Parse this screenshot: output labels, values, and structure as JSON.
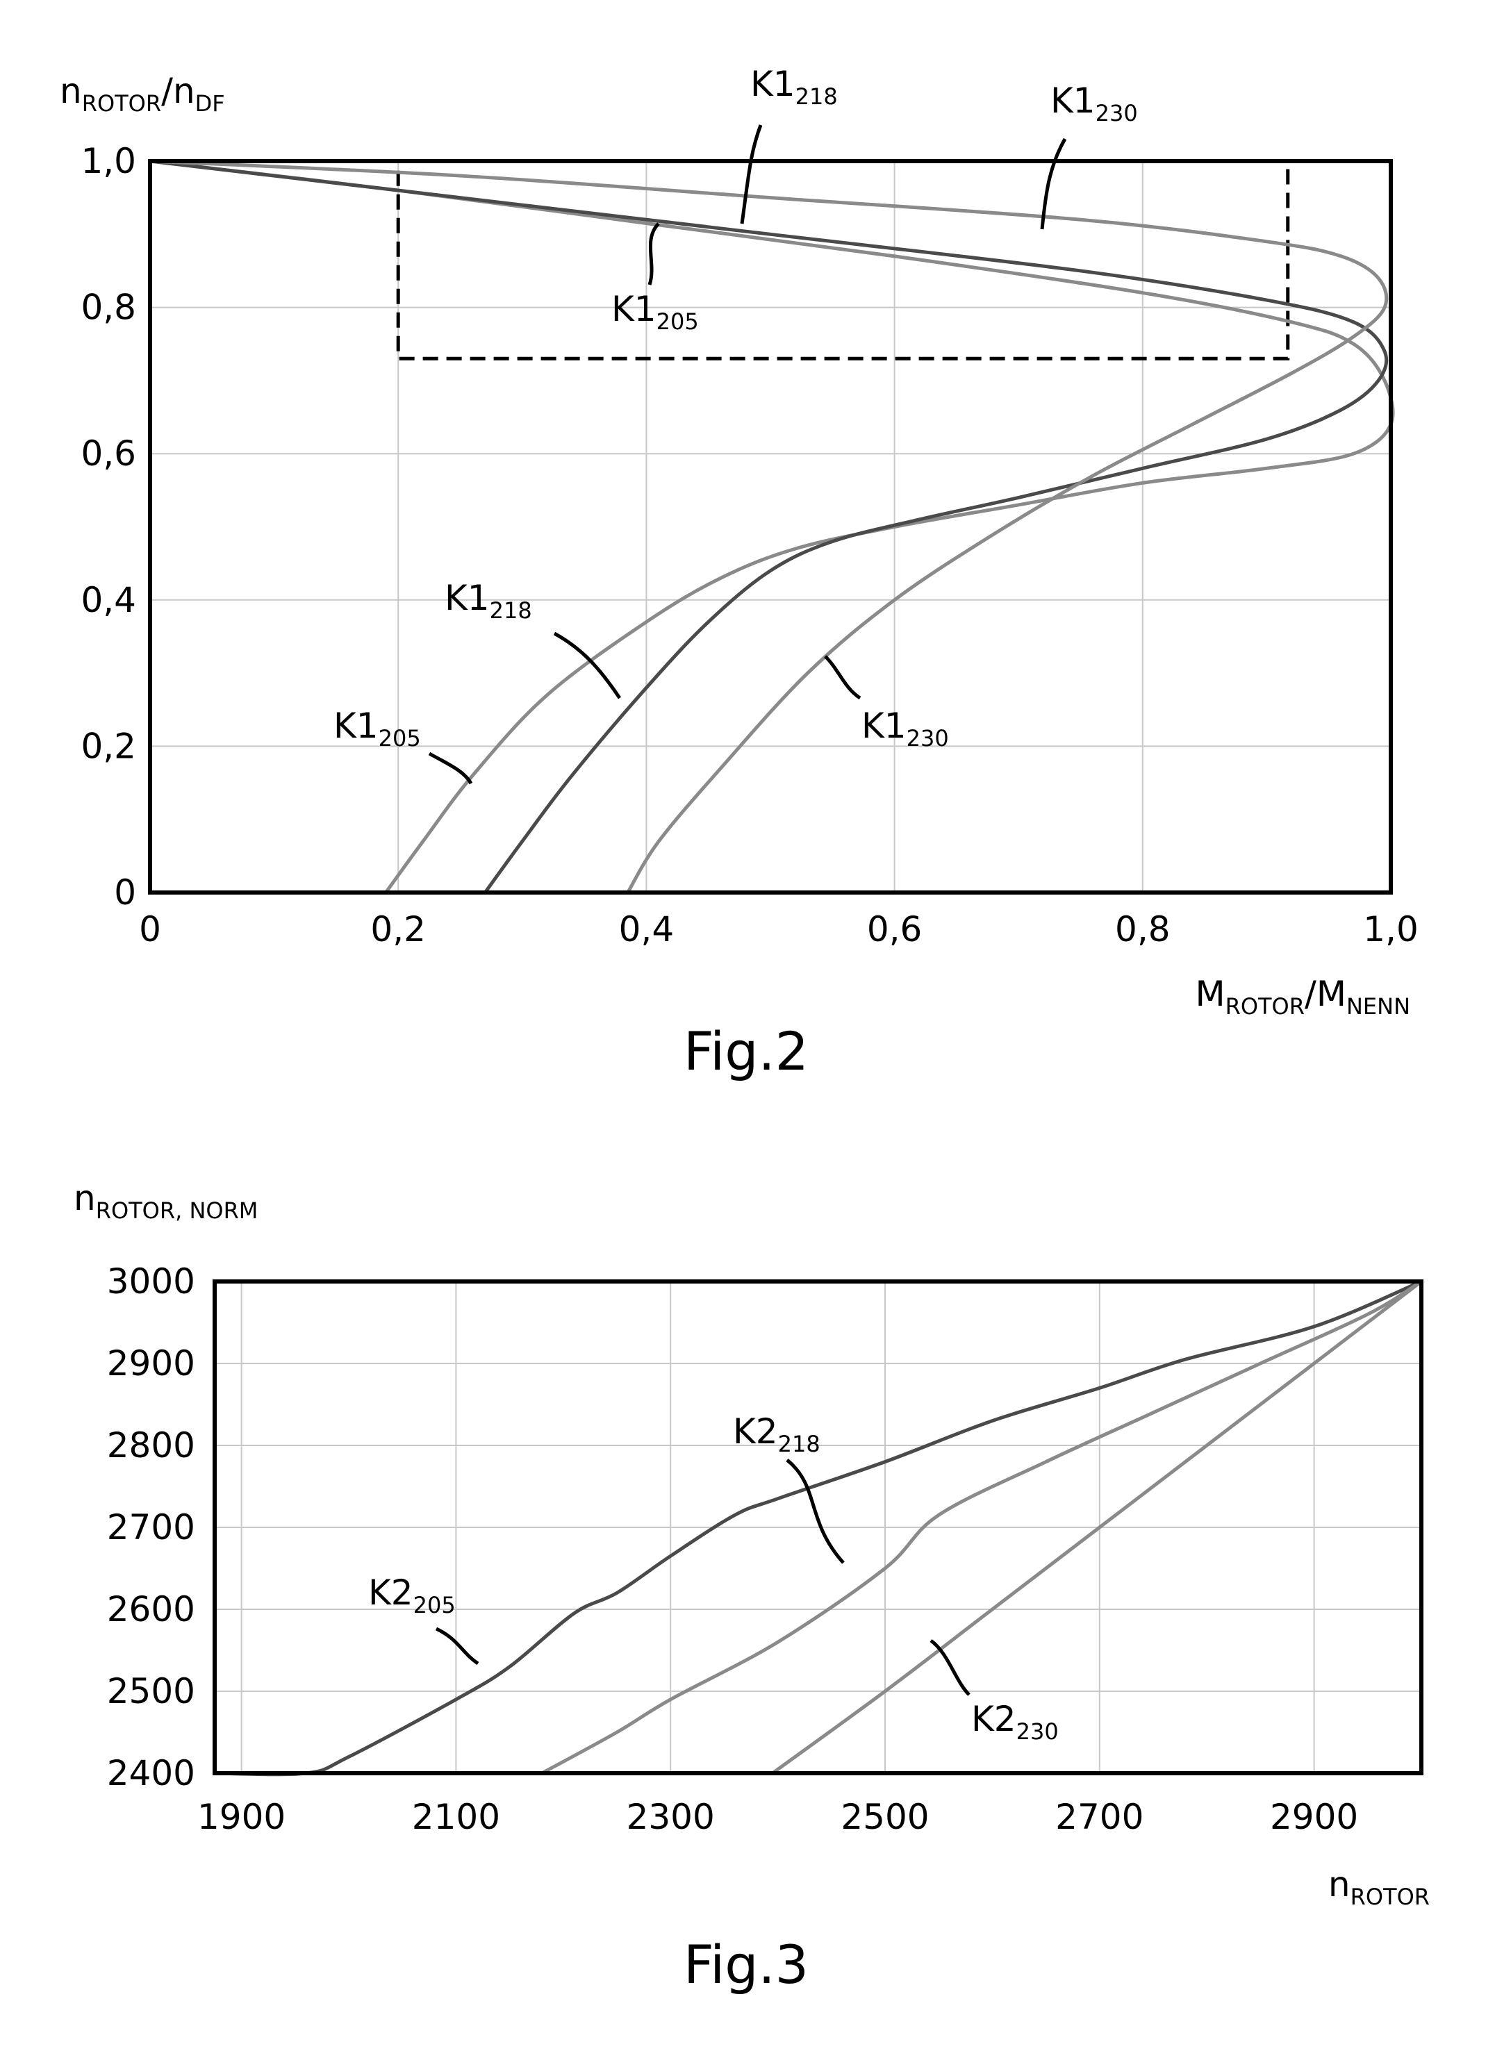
{
  "chart_data": [
    {
      "type": "line",
      "figure": "Fig.2",
      "xlabel": "M",
      "xlabel_sub": "ROTOR",
      "xlabel_slash": "/M",
      "xlabel_sub2": "NENN",
      "ylabel": "n",
      "ylabel_sub": "ROTOR",
      "ylabel_slash": "/n",
      "ylabel_sub2": "DF",
      "xlim": [
        0,
        1.0
      ],
      "ylim": [
        0,
        1.0
      ],
      "xticks": [
        {
          "v": 0,
          "label": "0"
        },
        {
          "v": 0.2,
          "label": "0,2"
        },
        {
          "v": 0.4,
          "label": "0,4"
        },
        {
          "v": 0.6,
          "label": "0,6"
        },
        {
          "v": 0.8,
          "label": "0,8"
        },
        {
          "v": 1.0,
          "label": "1,0"
        }
      ],
      "yticks": [
        {
          "v": 0,
          "label": "0"
        },
        {
          "v": 0.2,
          "label": "0,2"
        },
        {
          "v": 0.4,
          "label": "0,4"
        },
        {
          "v": 0.6,
          "label": "0,6"
        },
        {
          "v": 0.8,
          "label": "0,8"
        },
        {
          "v": 1.0,
          "label": "1,0"
        }
      ],
      "grid": true,
      "dashed_box": {
        "x": [
          0.2,
          0.917
        ],
        "y": [
          0.73,
          1.0
        ]
      },
      "series": [
        {
          "name": "K1",
          "sub": "205",
          "color": "#8a8a8a",
          "points": [
            [
              0.19,
              0
            ],
            [
              0.22,
              0.07
            ],
            [
              0.26,
              0.16
            ],
            [
              0.32,
              0.27
            ],
            [
              0.4,
              0.37
            ],
            [
              0.46,
              0.43
            ],
            [
              0.52,
              0.47
            ],
            [
              0.6,
              0.5
            ],
            [
              0.7,
              0.53
            ],
            [
              0.8,
              0.56
            ],
            [
              0.9,
              0.58
            ],
            [
              0.97,
              0.6
            ],
            [
              1.0,
              0.64
            ],
            [
              0.995,
              0.7
            ],
            [
              0.97,
              0.75
            ],
            [
              0.92,
              0.78
            ],
            [
              0.8,
              0.82
            ],
            [
              0.6,
              0.87
            ],
            [
              0.4,
              0.915
            ],
            [
              0.2,
              0.96
            ],
            [
              0,
              1.0
            ]
          ]
        },
        {
          "name": "K1",
          "sub": "218",
          "color": "#4a4a4a",
          "points": [
            [
              0.27,
              0
            ],
            [
              0.3,
              0.07
            ],
            [
              0.34,
              0.16
            ],
            [
              0.4,
              0.28
            ],
            [
              0.45,
              0.37
            ],
            [
              0.5,
              0.44
            ],
            [
              0.55,
              0.48
            ],
            [
              0.62,
              0.51
            ],
            [
              0.7,
              0.54
            ],
            [
              0.8,
              0.58
            ],
            [
              0.9,
              0.62
            ],
            [
              0.96,
              0.66
            ],
            [
              0.99,
              0.7
            ],
            [
              0.995,
              0.74
            ],
            [
              0.97,
              0.78
            ],
            [
              0.9,
              0.81
            ],
            [
              0.75,
              0.85
            ],
            [
              0.5,
              0.9
            ],
            [
              0.3,
              0.94
            ],
            [
              0,
              1.0
            ]
          ]
        },
        {
          "name": "K1",
          "sub": "230",
          "color": "#8a8a8a",
          "points": [
            [
              0.385,
              0
            ],
            [
              0.41,
              0.07
            ],
            [
              0.46,
              0.17
            ],
            [
              0.53,
              0.3
            ],
            [
              0.6,
              0.4
            ],
            [
              0.68,
              0.49
            ],
            [
              0.76,
              0.57
            ],
            [
              0.84,
              0.64
            ],
            [
              0.92,
              0.71
            ],
            [
              0.97,
              0.76
            ],
            [
              0.995,
              0.8
            ],
            [
              0.99,
              0.84
            ],
            [
              0.96,
              0.87
            ],
            [
              0.9,
              0.89
            ],
            [
              0.75,
              0.92
            ],
            [
              0.5,
              0.95
            ],
            [
              0.25,
              0.98
            ],
            [
              0,
              1.0
            ]
          ]
        }
      ],
      "annotations": [
        {
          "name": "K1",
          "sub": "218",
          "series": 1
        },
        {
          "name": "K1",
          "sub": "230",
          "series": 2
        },
        {
          "name": "K1",
          "sub": "205",
          "series": 0
        },
        {
          "name": "K1",
          "sub": "218",
          "series": 1
        },
        {
          "name": "K1",
          "sub": "205",
          "series": 0
        },
        {
          "name": "K1",
          "sub": "230",
          "series": 2
        }
      ]
    },
    {
      "type": "line",
      "figure": "Fig.3",
      "xlabel": "n",
      "xlabel_sub": "ROTOR",
      "ylabel": "n",
      "ylabel_sub": "ROTOR, NORM",
      "xlim": [
        1875,
        3000
      ],
      "ylim": [
        2400,
        3000
      ],
      "xticks": [
        {
          "v": 1900,
          "label": "1900"
        },
        {
          "v": 2100,
          "label": "2100"
        },
        {
          "v": 2300,
          "label": "2300"
        },
        {
          "v": 2500,
          "label": "2500"
        },
        {
          "v": 2700,
          "label": "2700"
        },
        {
          "v": 2900,
          "label": "2900"
        }
      ],
      "yticks": [
        {
          "v": 2400,
          "label": "2400"
        },
        {
          "v": 2500,
          "label": "2500"
        },
        {
          "v": 2600,
          "label": "2600"
        },
        {
          "v": 2700,
          "label": "2700"
        },
        {
          "v": 2800,
          "label": "2800"
        },
        {
          "v": 2900,
          "label": "2900"
        },
        {
          "v": 3000,
          "label": "3000"
        }
      ],
      "grid": true,
      "series": [
        {
          "name": "K2",
          "sub": "205",
          "color": "#4a4a4a",
          "points": [
            [
              1875,
              2400
            ],
            [
              1960,
              2400
            ],
            [
              2000,
              2420
            ],
            [
              2100,
              2490
            ],
            [
              2150,
              2530
            ],
            [
              2210,
              2595
            ],
            [
              2250,
              2620
            ],
            [
              2300,
              2665
            ],
            [
              2360,
              2715
            ],
            [
              2400,
              2735
            ],
            [
              2500,
              2780
            ],
            [
              2600,
              2830
            ],
            [
              2700,
              2870
            ],
            [
              2780,
              2905
            ],
            [
              2900,
              2945
            ],
            [
              3000,
              3000
            ]
          ]
        },
        {
          "name": "K2",
          "sub": "218",
          "color": "#8a8a8a",
          "points": [
            [
              2180,
              2400
            ],
            [
              2250,
              2450
            ],
            [
              2300,
              2490
            ],
            [
              2400,
              2560
            ],
            [
              2500,
              2650
            ],
            [
              2550,
              2715
            ],
            [
              2650,
              2780
            ],
            [
              2750,
              2840
            ],
            [
              2850,
              2900
            ],
            [
              2950,
              2960
            ],
            [
              3000,
              3000
            ]
          ]
        },
        {
          "name": "K2",
          "sub": "230",
          "color": "#8a8a8a",
          "points": [
            [
              2395,
              2400
            ],
            [
              2500,
              2500
            ],
            [
              2600,
              2600
            ],
            [
              2700,
              2700
            ],
            [
              2800,
              2800
            ],
            [
              2900,
              2900
            ],
            [
              3000,
              3000
            ]
          ]
        }
      ],
      "annotations": [
        {
          "name": "K2",
          "sub": "218",
          "series": 1
        },
        {
          "name": "K2",
          "sub": "205",
          "series": 0
        },
        {
          "name": "K2",
          "sub": "230",
          "series": 2
        }
      ]
    }
  ]
}
